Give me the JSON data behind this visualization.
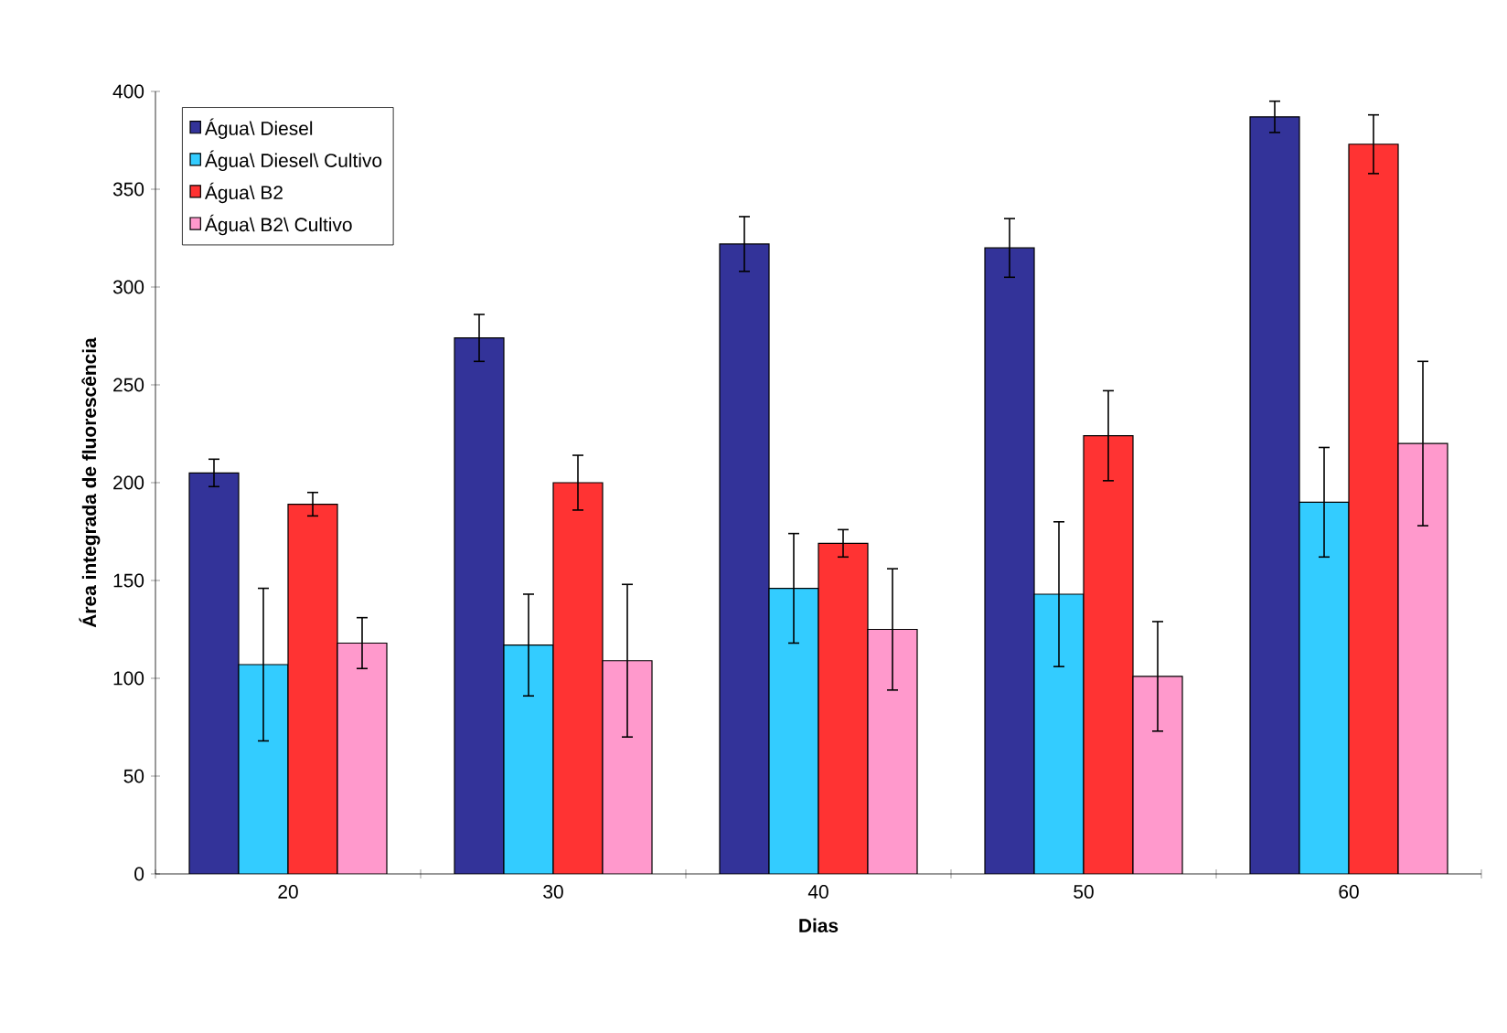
{
  "chart_data": {
    "type": "bar",
    "xlabel": "Dias",
    "ylabel": "Área integrada de fluorescência",
    "categories": [
      "20",
      "30",
      "40",
      "50",
      "60"
    ],
    "series": [
      {
        "name": "Água\\ Diesel",
        "color": "#333399",
        "values": [
          205,
          274,
          322,
          320,
          387
        ],
        "errors": [
          7,
          12,
          14,
          15,
          8
        ]
      },
      {
        "name": "Água\\ Diesel\\ Cultivo",
        "color": "#33ccff",
        "values": [
          107,
          117,
          146,
          143,
          190
        ],
        "errors": [
          39,
          26,
          28,
          37,
          28
        ]
      },
      {
        "name": "Água\\ B2",
        "color": "#ff3333",
        "values": [
          189,
          200,
          169,
          224,
          373
        ],
        "errors": [
          6,
          14,
          7,
          23,
          15
        ]
      },
      {
        "name": "Água\\ B2\\ Cultivo",
        "color": "#ff99cc",
        "values": [
          118,
          109,
          125,
          101,
          220
        ],
        "errors": [
          13,
          39,
          31,
          28,
          42
        ]
      }
    ],
    "ylim": [
      0,
      400
    ],
    "yticks": [
      0,
      50,
      100,
      150,
      200,
      250,
      300,
      350,
      400
    ],
    "legend": "top left"
  }
}
